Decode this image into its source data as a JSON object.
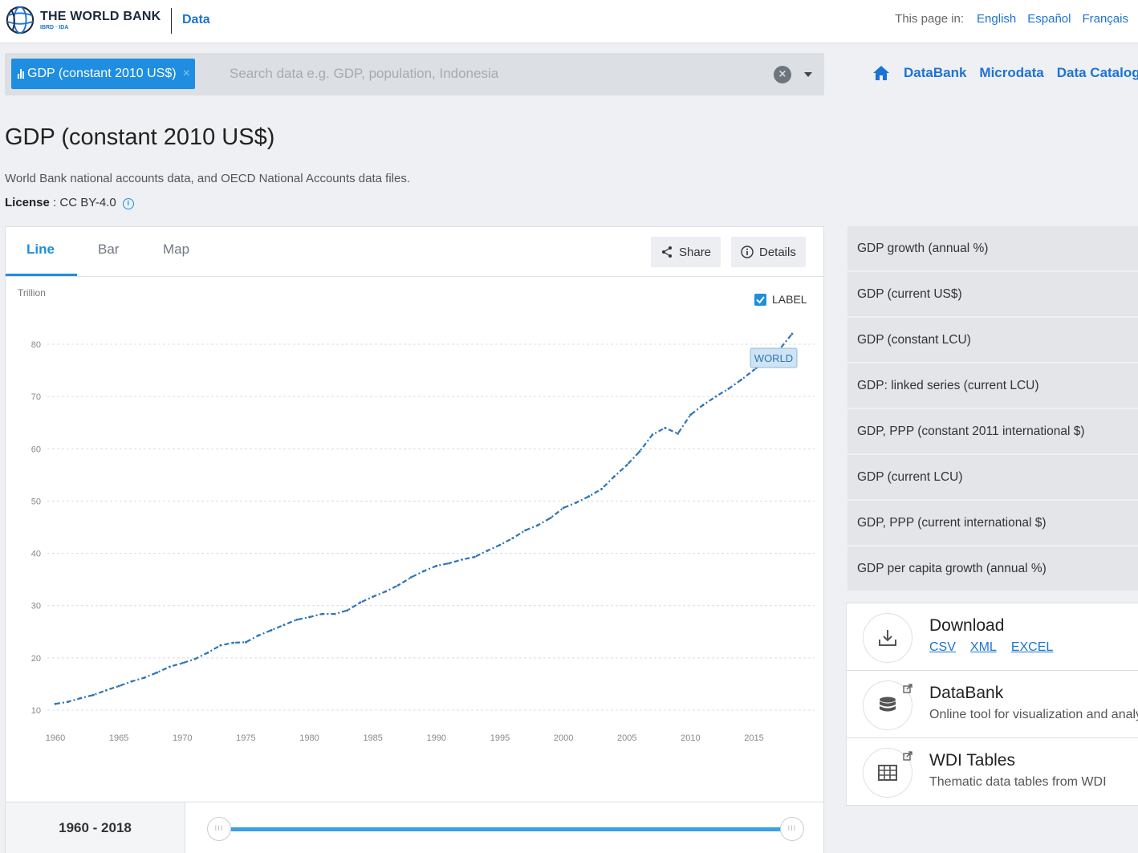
{
  "header": {
    "logo_title": "THE WORLD BANK",
    "logo_sub": "IBRD · IDA",
    "data_link": "Data",
    "lang_label": "This page in:",
    "languages": [
      "English",
      "Español",
      "Français"
    ]
  },
  "search": {
    "chip_label": "GDP (constant 2010 US$)",
    "chip_remove": "×",
    "placeholder": "Search data e.g. GDP, population, Indonesia",
    "clear": "×"
  },
  "nav": {
    "items": [
      "DataBank",
      "Microdata",
      "Data Catalog"
    ]
  },
  "page": {
    "title": "GDP (constant 2010 US$)",
    "source": "World Bank national accounts data, and OECD National Accounts data files.",
    "license_label": "License",
    "license_value": " : CC BY-4.0",
    "info_glyph": "i"
  },
  "chart_tabs": {
    "tabs": [
      "Line",
      "Bar",
      "Map"
    ],
    "share": "Share",
    "details": "Details"
  },
  "chart_data": {
    "type": "line",
    "ylabel": "Trillion",
    "label_toggle": "LABEL",
    "label_checked": true,
    "ylim": [
      10,
      83
    ],
    "yticks": [
      10,
      20,
      30,
      40,
      50,
      60,
      70,
      80
    ],
    "xticks": [
      1960,
      1965,
      1970,
      1975,
      1980,
      1985,
      1990,
      1995,
      2000,
      2005,
      2010,
      2015
    ],
    "xlim": [
      1960,
      2018
    ],
    "grid": true,
    "series": [
      {
        "name": "WORLD",
        "color": "#2e75b6",
        "x": [
          1960,
          1961,
          1962,
          1963,
          1964,
          1965,
          1966,
          1967,
          1968,
          1969,
          1970,
          1971,
          1972,
          1973,
          1974,
          1975,
          1976,
          1977,
          1978,
          1979,
          1980,
          1981,
          1982,
          1983,
          1984,
          1985,
          1986,
          1987,
          1988,
          1989,
          1990,
          1991,
          1992,
          1993,
          1994,
          1995,
          1996,
          1997,
          1998,
          1999,
          2000,
          2001,
          2002,
          2003,
          2004,
          2005,
          2006,
          2007,
          2008,
          2009,
          2010,
          2011,
          2012,
          2013,
          2014,
          2015,
          2016,
          2017,
          2018
        ],
        "values": [
          11.2,
          11.6,
          12.3,
          12.9,
          13.8,
          14.6,
          15.5,
          16.2,
          17.2,
          18.3,
          19.0,
          19.8,
          21.0,
          22.4,
          22.9,
          23.0,
          24.3,
          25.3,
          26.3,
          27.3,
          27.8,
          28.4,
          28.4,
          29.1,
          30.6,
          31.7,
          32.7,
          33.9,
          35.4,
          36.6,
          37.6,
          38.1,
          38.8,
          39.3,
          40.5,
          41.6,
          42.9,
          44.4,
          45.4,
          46.8,
          48.7,
          49.7,
          50.9,
          52.3,
          54.7,
          56.9,
          59.5,
          62.7,
          64.0,
          62.9,
          66.5,
          68.4,
          70.0,
          71.5,
          73.2,
          75.1,
          76.9,
          79.0,
          82.0
        ]
      }
    ]
  },
  "slider": {
    "range_label": "1960 - 2018",
    "start_fraction": 0,
    "end_fraction": 1,
    "handle_glyph": "III"
  },
  "related": [
    "GDP growth (annual %)",
    "GDP (current US$)",
    "GDP (constant LCU)",
    "GDP: linked series (current LCU)",
    "GDP, PPP (constant 2011 international $)",
    "GDP (current LCU)",
    "GDP, PPP (current international $)",
    "GDP per capita growth (annual %)"
  ],
  "tools": {
    "download": {
      "title": "Download",
      "links": [
        "CSV",
        "XML",
        "EXCEL"
      ]
    },
    "databank": {
      "title": "DataBank",
      "desc": "Online tool for visualization and analysis"
    },
    "wdi": {
      "title": "WDI Tables",
      "desc": "Thematic data tables from WDI"
    }
  }
}
